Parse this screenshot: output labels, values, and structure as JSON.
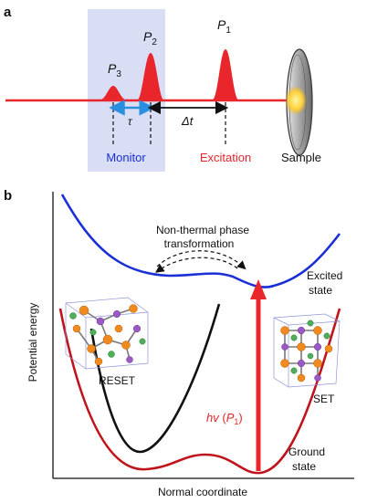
{
  "panel_a": {
    "label": "a",
    "pulse_p1": {
      "letter": "P",
      "sub": "1"
    },
    "pulse_p2": {
      "letter": "P",
      "sub": "2"
    },
    "pulse_p3": {
      "letter": "P",
      "sub": "3"
    },
    "tau": "τ",
    "delta_t": "Δt",
    "monitor": "Monitor",
    "excitation": "Excitation",
    "sample": "Sample",
    "colors": {
      "monitor_text": "#1a2fd6",
      "excitation_text": "#e4252b",
      "beam": "#e8262c",
      "box": "#d9def5"
    }
  },
  "panel_b": {
    "label": "b",
    "transformation_line1": "Non-thermal phase",
    "transformation_line2": "transformation",
    "excited_line1": "Excited",
    "excited_line2": "state",
    "ground_line1": "Ground",
    "ground_line2": "state",
    "reset": "RESET",
    "set": "SET",
    "hv_prefix": "hv",
    "hv_letter": "P",
    "hv_sub": "1",
    "y_axis": "Potential energy",
    "x_axis": "Normal coordinate",
    "colors": {
      "excited_curve": "#1a2fd6",
      "ground_curve": "#c0141c",
      "reset_curve": "#111111",
      "arrow": "#e8262c"
    }
  }
}
